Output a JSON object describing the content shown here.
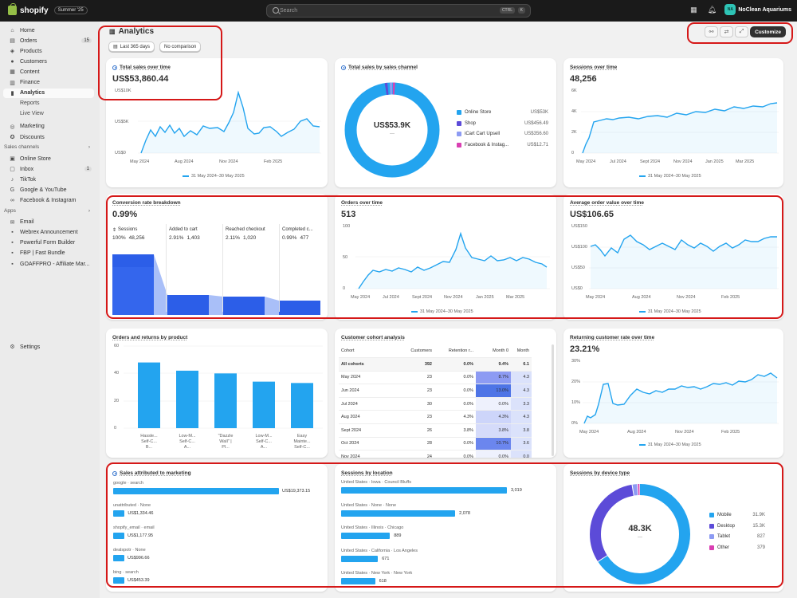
{
  "topbar": {
    "brand": "shopify",
    "edition": "Summer '25",
    "search_placeholder": "Search",
    "kbd1": "CTRL",
    "kbd2": "K",
    "avatar_initials": "NA",
    "store_name": "NoClean Aquariums"
  },
  "sidebar": {
    "main": [
      {
        "label": "Home",
        "icon": "home-icon"
      },
      {
        "label": "Orders",
        "icon": "orders-icon",
        "count": "15"
      },
      {
        "label": "Products",
        "icon": "tag-icon"
      },
      {
        "label": "Customers",
        "icon": "person-icon"
      },
      {
        "label": "Content",
        "icon": "content-icon"
      },
      {
        "label": "Finance",
        "icon": "bank-icon"
      },
      {
        "label": "Analytics",
        "icon": "chart-icon",
        "active": true
      },
      {
        "label": "Reports",
        "sub": true
      },
      {
        "label": "Live View",
        "sub": true
      },
      {
        "label": "Marketing",
        "icon": "target-icon"
      },
      {
        "label": "Discounts",
        "icon": "discount-icon"
      }
    ],
    "sales_channels_label": "Sales channels",
    "channels": [
      {
        "label": "Online Store",
        "icon": "store-icon"
      },
      {
        "label": "Inbox",
        "icon": "inbox-icon",
        "count": "1"
      },
      {
        "label": "TikTok",
        "icon": "tiktok-icon"
      },
      {
        "label": "Google & YouTube",
        "icon": "google-icon"
      },
      {
        "label": "Facebook & Instagram",
        "icon": "meta-icon"
      }
    ],
    "apps_label": "Apps",
    "apps": [
      {
        "label": "Email",
        "icon": "mail-icon"
      },
      {
        "label": "Webrex Announcement",
        "icon": "app-icon"
      },
      {
        "label": "Powerful Form Builder",
        "icon": "app-icon"
      },
      {
        "label": "FBP | Fast Bundle",
        "icon": "app-icon"
      },
      {
        "label": "GOAFFPRO - Affiliate Mar...",
        "icon": "app-icon"
      }
    ],
    "settings_label": "Settings"
  },
  "header": {
    "title": "Analytics",
    "date_btn": "Last 365 days",
    "compare_btn": "No comparison",
    "customize": "Customize"
  },
  "cards": {
    "total_sales": {
      "title": "Total sales over time",
      "value": "US$53,860.44",
      "y_ticks": [
        "US$10K",
        "US$5K",
        "US$0"
      ],
      "x_ticks": [
        "May 2024",
        "Aug 2024",
        "Nov 2024",
        "Feb 2025"
      ],
      "legend": "31 May 2024–30 May 2025"
    },
    "sales_channel": {
      "title": "Total sales by sales channel",
      "center": "US$53.9K",
      "center_sub": "—",
      "items": [
        {
          "name": "Online Store",
          "value": "US$53K",
          "color": "#23a4ef"
        },
        {
          "name": "Shop",
          "value": "US$456.49",
          "color": "#5c4bd8"
        },
        {
          "name": "iCart Cart Upsell",
          "value": "US$356.60",
          "color": "#8d9bf3"
        },
        {
          "name": "Facebook & Instag...",
          "value": "US$12.71",
          "color": "#d93fb2"
        }
      ]
    },
    "sessions": {
      "title": "Sessions over time",
      "value": "48,256",
      "y_ticks": [
        "6K",
        "4K",
        "2K",
        "0"
      ],
      "x_ticks": [
        "May 2024",
        "Jul 2024",
        "Sept 2024",
        "Nov 2024",
        "Jan 2025",
        "Mar 2025"
      ],
      "legend": "31 May 2024–30 May 2025"
    },
    "conversion": {
      "title": "Conversion rate breakdown",
      "value": "0.99%",
      "steps": [
        {
          "label": "Sessions",
          "pct": "100%",
          "count": "48,256"
        },
        {
          "label": "Added to cart",
          "pct": "2.91%",
          "count": "1,403"
        },
        {
          "label": "Reached checkout",
          "pct": "2.11%",
          "count": "1,020"
        },
        {
          "label": "Completed c...",
          "pct": "0.99%",
          "count": "477"
        }
      ]
    },
    "orders": {
      "title": "Orders over time",
      "value": "513",
      "y_ticks": [
        "100",
        "50",
        "0"
      ],
      "x_ticks": [
        "May 2024",
        "Jul 2024",
        "Sept 2024",
        "Nov 2024",
        "Jan 2025",
        "Mar 2025"
      ],
      "legend": "31 May 2024–30 May 2025"
    },
    "aov": {
      "title": "Average order value over time",
      "value": "US$106.65",
      "y_ticks": [
        "US$150",
        "US$100",
        "US$50",
        "US$0"
      ],
      "x_ticks": [
        "May 2024",
        "Aug 2024",
        "Nov 2024",
        "Feb 2025"
      ],
      "legend": "31 May 2024–30 May 2025"
    },
    "orders_returns": {
      "title": "Orders and returns by product",
      "y_ticks": [
        "60",
        "40",
        "20",
        "0"
      ],
      "bars": [
        {
          "label1": "Hassle...",
          "label2": "Self-C...",
          "label3": "B...",
          "value": 48
        },
        {
          "label1": "Low-M...",
          "label2": "Self-C...",
          "label3": "A...",
          "value": 42
        },
        {
          "label1": "\"Dazzle",
          "label2": "Wall\" |",
          "label3": "Pl...",
          "value": 40
        },
        {
          "label1": "Low-M...",
          "label2": "Self-C...",
          "label3": "A...",
          "value": 34
        },
        {
          "label1": "Easy",
          "label2": "Mainte...",
          "label3": "Self-C...",
          "value": 33
        }
      ]
    },
    "cohort": {
      "title": "Customer cohort analysis",
      "headers": [
        "Cohort",
        "Customers",
        "Retention r...",
        "Month 0",
        "Month"
      ],
      "rows": [
        [
          "All cohorts",
          "392",
          "0.0%",
          "9.4%",
          "6.1"
        ],
        [
          "May 2024",
          "23",
          "0.0%",
          "8.7%",
          "4.3"
        ],
        [
          "Jun 2024",
          "23",
          "0.0%",
          "13.0%",
          "4.3"
        ],
        [
          "Jul 2024",
          "30",
          "0.0%",
          "0.0%",
          "3.3"
        ],
        [
          "Aug 2024",
          "23",
          "4.3%",
          "4.3%",
          "4.3"
        ],
        [
          "Sept 2024",
          "26",
          "3.8%",
          "3.8%",
          "3.8"
        ],
        [
          "Oct 2024",
          "28",
          "0.0%",
          "10.7%",
          "3.6"
        ],
        [
          "Nov 2024",
          "24",
          "0.0%",
          "0.0%",
          "0.0"
        ]
      ]
    },
    "returning": {
      "title": "Returning customer rate over time",
      "value": "23.21%",
      "y_ticks": [
        "30%",
        "20%",
        "10%",
        "0%"
      ],
      "x_ticks": [
        "May 2024",
        "Aug 2024",
        "Nov 2024",
        "Feb 2025"
      ],
      "legend": "31 May 2024–30 May 2025"
    },
    "marketing": {
      "title": "Sales attributed to marketing",
      "rows": [
        {
          "label": "google · search",
          "value": "US$19,373.15",
          "amount": 19373.15
        },
        {
          "label": "unattributed · None",
          "value": "US$1,334.46",
          "amount": 1334.46
        },
        {
          "label": "shopify_email · email",
          "value": "US$1,177.95",
          "amount": 1177.95
        },
        {
          "label": "dealspotr · None",
          "value": "US$996.66",
          "amount": 996.66
        },
        {
          "label": "bing · search",
          "value": "US$453.39",
          "amount": 453.39
        }
      ]
    },
    "location": {
      "title": "Sessions by location",
      "rows": [
        {
          "label": "United States · Iowa · Council Bluffs",
          "value": "3,019",
          "amount": 3019
        },
        {
          "label": "United States · None · None",
          "value": "2,078",
          "amount": 2078
        },
        {
          "label": "United States · Illinois · Chicago",
          "value": "889",
          "amount": 889
        },
        {
          "label": "United States · California · Los Angeles",
          "value": "671",
          "amount": 671
        },
        {
          "label": "United States · New York · New York",
          "value": "618",
          "amount": 618
        }
      ]
    },
    "device": {
      "title": "Sessions by device type",
      "center": "48.3K",
      "center_sub": "—",
      "items": [
        {
          "name": "Mobile",
          "value": "31.9K",
          "amount": 31900,
          "color": "#23a4ef"
        },
        {
          "name": "Desktop",
          "value": "15.3K",
          "amount": 15300,
          "color": "#5c4bd8"
        },
        {
          "name": "Tablet",
          "value": "827",
          "amount": 827,
          "color": "#8d9bf3"
        },
        {
          "name": "Other",
          "value": "379",
          "amount": 379,
          "color": "#d93fb2"
        }
      ]
    }
  }
}
